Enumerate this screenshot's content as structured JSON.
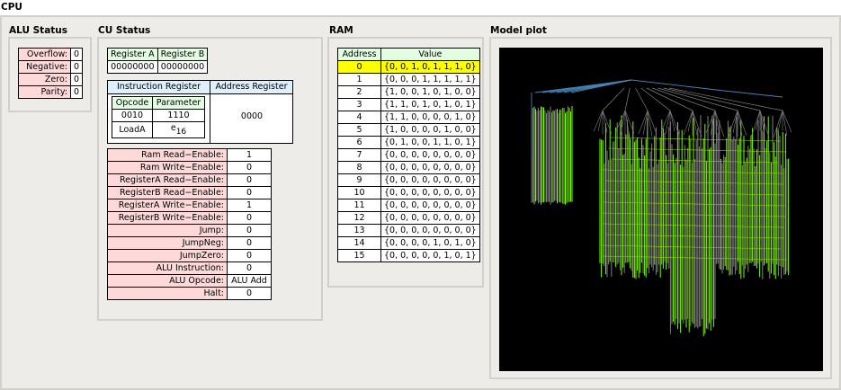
{
  "window": {
    "title": "CPU"
  },
  "alu": {
    "title": "ALU Status",
    "flags": [
      {
        "label": "Overflow:",
        "value": "0"
      },
      {
        "label": "Negative:",
        "value": "0"
      },
      {
        "label": "Zero:",
        "value": "0"
      },
      {
        "label": "Parity:",
        "value": "0"
      }
    ]
  },
  "cu": {
    "title": "CU Status",
    "register_a": {
      "label": "Register A",
      "value": "00000000"
    },
    "register_b": {
      "label": "Register B",
      "value": "00000000"
    },
    "instruction_register": {
      "label": "Instruction Register",
      "opcode_label": "Opcode",
      "parameter_label": "Parameter",
      "opcode_bits": "0010",
      "parameter_bits": "1110",
      "mnemonic": "LoadA",
      "param_value": "e",
      "param_sub": "16"
    },
    "address_register": {
      "label": "Address Register",
      "value": "0000"
    },
    "signals": [
      {
        "label": "Ram Read−Enable:",
        "value": "1"
      },
      {
        "label": "Ram Write−Enable:",
        "value": "0"
      },
      {
        "label": "RegisterA Read−Enable:",
        "value": "0"
      },
      {
        "label": "RegisterB Read−Enable:",
        "value": "0"
      },
      {
        "label": "RegisterA Write−Enable:",
        "value": "1"
      },
      {
        "label": "RegisterB Write−Enable:",
        "value": "0"
      },
      {
        "label": "Jump:",
        "value": "0"
      },
      {
        "label": "JumpNeg:",
        "value": "0"
      },
      {
        "label": "JumpZero:",
        "value": "0"
      },
      {
        "label": "ALU Instruction:",
        "value": "0"
      },
      {
        "label": "ALU Opcode:",
        "value": "ALU Add"
      },
      {
        "label": "Halt:",
        "value": "0"
      }
    ]
  },
  "ram": {
    "title": "RAM",
    "col_address": "Address",
    "col_value": "Value",
    "highlighted_row": 0,
    "rows": [
      {
        "address": "0",
        "value": "{0, 0, 1, 0, 1, 1, 1, 0}"
      },
      {
        "address": "1",
        "value": "{0, 0, 0, 1, 1, 1, 1, 1}"
      },
      {
        "address": "2",
        "value": "{1, 0, 0, 1, 0, 1, 0, 0}"
      },
      {
        "address": "3",
        "value": "{1, 1, 0, 1, 0, 1, 0, 1}"
      },
      {
        "address": "4",
        "value": "{1, 1, 0, 0, 0, 0, 1, 0}"
      },
      {
        "address": "5",
        "value": "{1, 0, 0, 0, 0, 1, 0, 0}"
      },
      {
        "address": "6",
        "value": "{0, 1, 0, 0, 1, 1, 0, 1}"
      },
      {
        "address": "7",
        "value": "{0, 0, 0, 0, 0, 0, 0, 0}"
      },
      {
        "address": "8",
        "value": "{0, 0, 0, 0, 0, 0, 0, 0}"
      },
      {
        "address": "9",
        "value": "{0, 0, 0, 0, 0, 0, 0, 0}"
      },
      {
        "address": "10",
        "value": "{0, 0, 0, 0, 0, 0, 0, 0}"
      },
      {
        "address": "11",
        "value": "{0, 0, 0, 0, 0, 0, 0, 0}"
      },
      {
        "address": "12",
        "value": "{0, 0, 0, 0, 0, 0, 0, 0}"
      },
      {
        "address": "13",
        "value": "{0, 0, 0, 0, 0, 0, 0, 0}"
      },
      {
        "address": "14",
        "value": "{0, 0, 0, 0, 1, 0, 1, 0}"
      },
      {
        "address": "15",
        "value": "{0, 0, 0, 0, 0, 1, 0, 1}"
      }
    ]
  },
  "model_plot": {
    "title": "Model plot",
    "colors": {
      "background": "#000000",
      "active": "#7cfc00",
      "inactive": "#808080",
      "root_edges": "#4682b4"
    }
  }
}
